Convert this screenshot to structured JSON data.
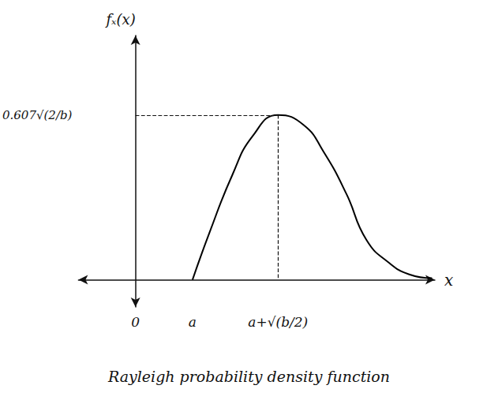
{
  "chart_data": {
    "type": "line",
    "title": "Rayleigh probability density function",
    "x_label": "x",
    "y_label": "fₓ(x)",
    "x": [
      2,
      2.6,
      3.4,
      4.1,
      5,
      5.9,
      6.6,
      7.4,
      8.1,
      8.9,
      9.6,
      10.4
    ],
    "values": [
      0,
      0.175,
      0.387,
      0.528,
      0.607,
      0.57,
      0.471,
      0.316,
      0.147,
      0.062,
      0.02,
      0.006
    ],
    "color": "#000000",
    "xlim": [
      -2,
      10.5
    ],
    "ylim": [
      -0.1,
      0.9
    ],
    "xticks": [
      0,
      {
        "value": 2,
        "label": "a"
      },
      {
        "value": 5,
        "label": "a+√(b/2)"
      }
    ],
    "yticks": [
      {
        "value": 0.607,
        "label": "0.607√(2/b)"
      }
    ],
    "grid": false,
    "line_style": "solid"
  }
}
